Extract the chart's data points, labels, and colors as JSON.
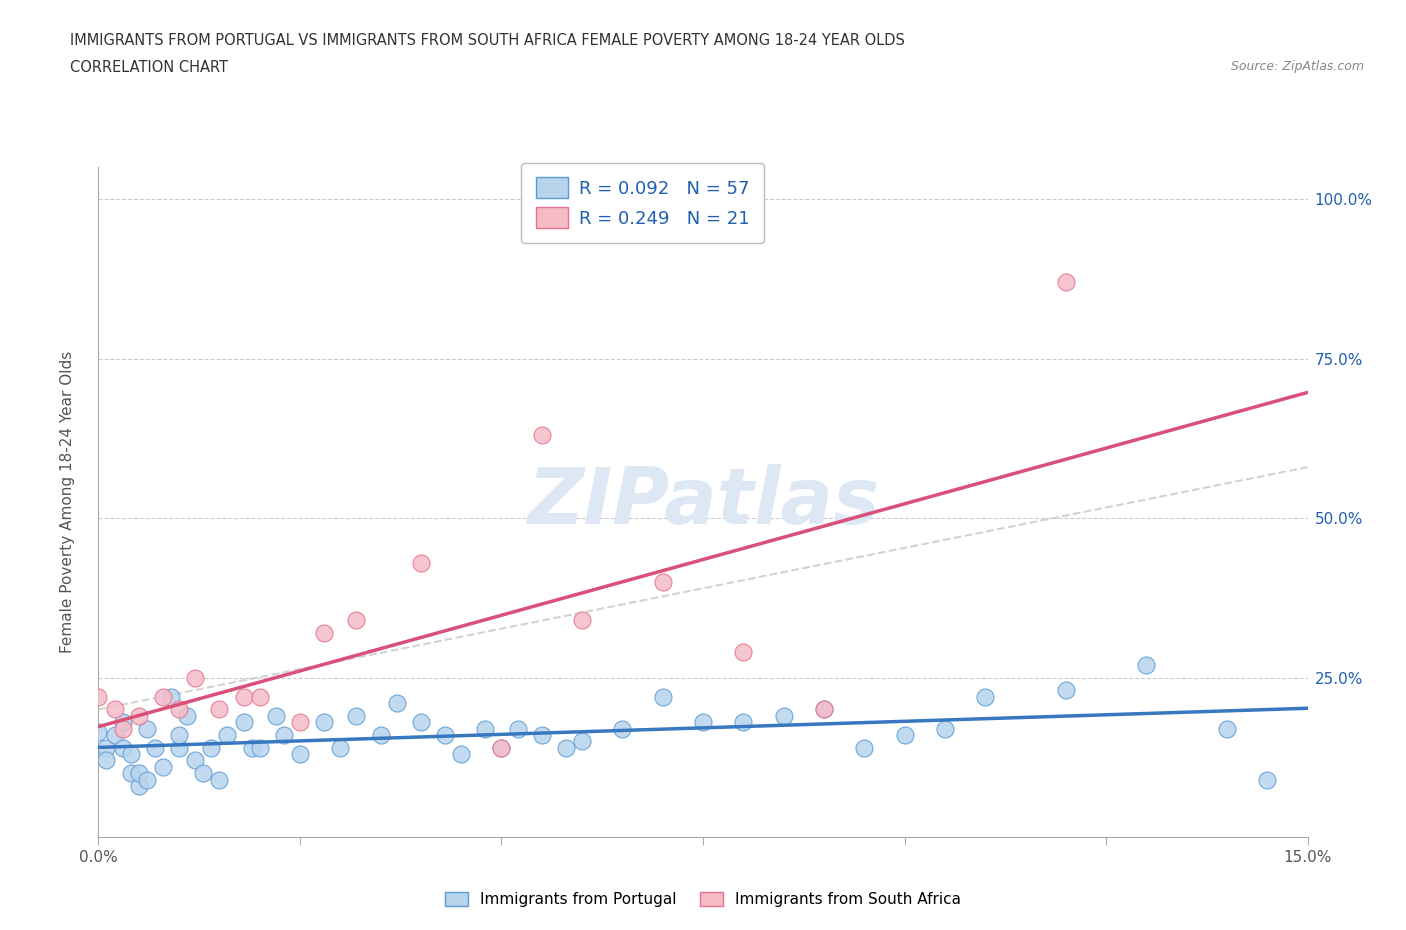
{
  "title_line1": "IMMIGRANTS FROM PORTUGAL VS IMMIGRANTS FROM SOUTH AFRICA FEMALE POVERTY AMONG 18-24 YEAR OLDS",
  "title_line2": "CORRELATION CHART",
  "source": "Source: ZipAtlas.com",
  "ylabel_label": "Female Poverty Among 18-24 Year Olds",
  "xlim": [
    0.0,
    0.15
  ],
  "ylim": [
    0.0,
    1.05
  ],
  "xtick_vals": [
    0.0,
    0.15
  ],
  "xtick_labels": [
    "0.0%",
    "15.0%"
  ],
  "ytick_vals": [
    0.0,
    0.25,
    0.5,
    0.75,
    1.0
  ],
  "ytick_labels_right": [
    "",
    "25.0%",
    "50.0%",
    "75.0%",
    "100.0%"
  ],
  "blue_fill": "#b8d4ed",
  "pink_fill": "#f5bcc8",
  "blue_edge": "#5b9bd5",
  "pink_edge": "#e8708a",
  "blue_line": "#3878c0",
  "pink_line": "#d9507a",
  "grey_dash": "#cccccc",
  "R_blue": 0.092,
  "N_blue": 57,
  "R_pink": 0.249,
  "N_pink": 21,
  "legend_label_blue": "Immigrants from Portugal",
  "legend_label_pink": "Immigrants from South Africa",
  "label_color": "#2060b0",
  "watermark": "ZIPatlas",
  "portugal_x": [
    0.0,
    0.001,
    0.001,
    0.002,
    0.003,
    0.003,
    0.004,
    0.004,
    0.005,
    0.005,
    0.006,
    0.006,
    0.007,
    0.008,
    0.009,
    0.01,
    0.01,
    0.011,
    0.012,
    0.013,
    0.014,
    0.015,
    0.016,
    0.018,
    0.019,
    0.02,
    0.022,
    0.023,
    0.025,
    0.028,
    0.03,
    0.032,
    0.035,
    0.037,
    0.04,
    0.043,
    0.045,
    0.048,
    0.05,
    0.052,
    0.055,
    0.058,
    0.06,
    0.065,
    0.07,
    0.075,
    0.08,
    0.085,
    0.09,
    0.095,
    0.1,
    0.105,
    0.11,
    0.12,
    0.13,
    0.14,
    0.145
  ],
  "portugal_y": [
    0.165,
    0.14,
    0.12,
    0.16,
    0.18,
    0.14,
    0.13,
    0.1,
    0.08,
    0.1,
    0.09,
    0.17,
    0.14,
    0.11,
    0.22,
    0.14,
    0.16,
    0.19,
    0.12,
    0.1,
    0.14,
    0.09,
    0.16,
    0.18,
    0.14,
    0.14,
    0.19,
    0.16,
    0.13,
    0.18,
    0.14,
    0.19,
    0.16,
    0.21,
    0.18,
    0.16,
    0.13,
    0.17,
    0.14,
    0.17,
    0.16,
    0.14,
    0.15,
    0.17,
    0.22,
    0.18,
    0.18,
    0.19,
    0.2,
    0.14,
    0.16,
    0.17,
    0.22,
    0.23,
    0.27,
    0.17,
    0.09
  ],
  "sa_x": [
    0.0,
    0.002,
    0.003,
    0.005,
    0.008,
    0.01,
    0.012,
    0.015,
    0.018,
    0.02,
    0.025,
    0.028,
    0.032,
    0.04,
    0.05,
    0.055,
    0.06,
    0.07,
    0.08,
    0.09,
    0.12
  ],
  "sa_y": [
    0.22,
    0.2,
    0.17,
    0.19,
    0.22,
    0.2,
    0.25,
    0.2,
    0.22,
    0.22,
    0.18,
    0.32,
    0.34,
    0.43,
    0.14,
    0.63,
    0.34,
    0.4,
    0.29,
    0.2,
    0.87
  ]
}
